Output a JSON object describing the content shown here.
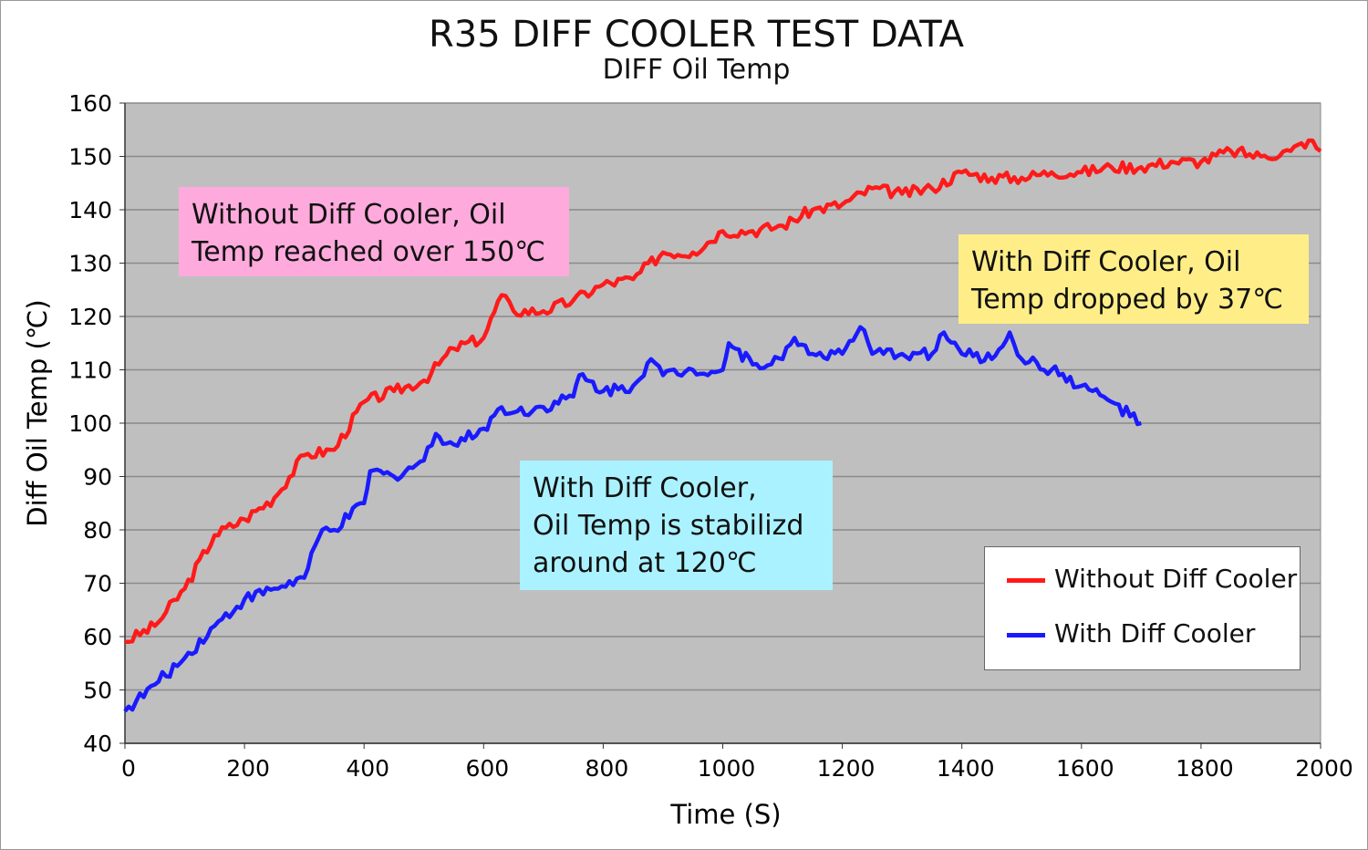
{
  "chart_data": {
    "type": "line",
    "title": "R35 DIFF COOLER TEST DATA",
    "subtitle": "DIFF Oil Temp",
    "xlabel": "Time (S)",
    "ylabel": "Diff Oil Temp (℃)",
    "xlim": [
      0,
      2000
    ],
    "ylim": [
      40,
      160
    ],
    "xticks": [
      "0",
      "200",
      "400",
      "600",
      "800",
      "1000",
      "1200",
      "1400",
      "1600",
      "1800",
      "2000"
    ],
    "yticks": [
      "40",
      "50",
      "60",
      "70",
      "80",
      "90",
      "100",
      "110",
      "120",
      "130",
      "140",
      "150",
      "160"
    ],
    "grid": true,
    "legend_position": "lower-right",
    "series": [
      {
        "name": "Without Diff Cooler",
        "color": "#ff1a1a",
        "x": [
          0,
          50,
          100,
          150,
          200,
          250,
          300,
          350,
          400,
          450,
          500,
          550,
          600,
          630,
          650,
          700,
          750,
          800,
          850,
          900,
          950,
          1000,
          1050,
          1100,
          1150,
          1200,
          1250,
          1300,
          1350,
          1400,
          1450,
          1500,
          1550,
          1600,
          1650,
          1700,
          1750,
          1800,
          1850,
          1900,
          1950,
          1980,
          2000
        ],
        "y": [
          59,
          62,
          69,
          79,
          82,
          86,
          94,
          95,
          104,
          106,
          108,
          114,
          116,
          124,
          121,
          121,
          123,
          126,
          127,
          132,
          132,
          136,
          136,
          137,
          140,
          141,
          144,
          143,
          144,
          147,
          146,
          146,
          147,
          147,
          148,
          148,
          149,
          149,
          151,
          150,
          151,
          153,
          151
        ]
      },
      {
        "name": "With Diff Cooler",
        "color": "#1a1aff",
        "x": [
          0,
          50,
          100,
          150,
          200,
          250,
          300,
          330,
          350,
          400,
          410,
          450,
          500,
          520,
          550,
          600,
          630,
          650,
          700,
          750,
          760,
          800,
          850,
          880,
          900,
          950,
          1000,
          1010,
          1050,
          1100,
          1120,
          1150,
          1200,
          1230,
          1250,
          1300,
          1350,
          1370,
          1400,
          1450,
          1480,
          1500,
          1550,
          1600,
          1650,
          1700
        ],
        "y": [
          46,
          51,
          56,
          62,
          67,
          69,
          71,
          80,
          80,
          85,
          91,
          90,
          93,
          98,
          96,
          99,
          103,
          102,
          103,
          105,
          109,
          106,
          107,
          112,
          109,
          110,
          110,
          115,
          111,
          112,
          116,
          113,
          113,
          118,
          113,
          113,
          113,
          117,
          113,
          112,
          117,
          112,
          110,
          107,
          104,
          100
        ]
      }
    ],
    "annotations": [
      {
        "lines": [
          "Without Diff Cooler, Oil",
          "Temp reached over 150℃"
        ],
        "bg": "#ffaadd"
      },
      {
        "lines": [
          "With Diff Cooler, Oil",
          "Temp dropped by 37℃"
        ],
        "bg": "#ffee88"
      },
      {
        "lines": [
          "With Diff Cooler,",
          "Oil Temp is stabilizd",
          "around at 120℃"
        ],
        "bg": "#aaf2ff"
      }
    ]
  }
}
